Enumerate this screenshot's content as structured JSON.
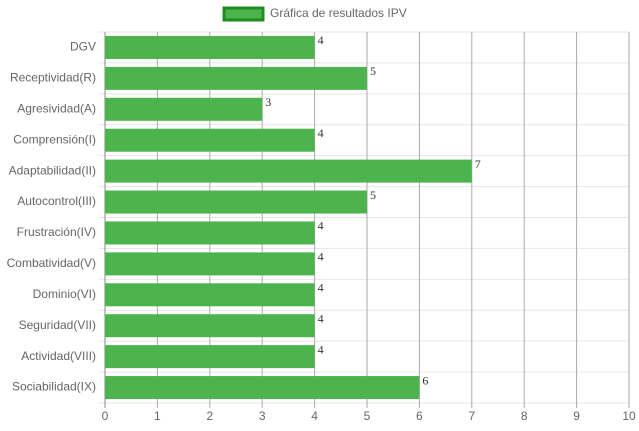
{
  "chart_data": {
    "type": "bar",
    "orientation": "horizontal",
    "series": [
      {
        "name": "Gráfica de resultados IPV",
        "color": "#4db34d",
        "border_color": "#1e8c1e",
        "values": [
          4,
          5,
          3,
          4,
          7,
          5,
          4,
          4,
          4,
          4,
          4,
          6
        ]
      }
    ],
    "categories": [
      "DGV",
      "Receptividad(R)",
      "Agresividad(A)",
      "Comprensión(I)",
      "Adaptabilidad(II)",
      "Autocontrol(III)",
      "Frustración(IV)",
      "Combatividad(V)",
      "Dominio(VI)",
      "Seguridad(VII)",
      "Actividad(VIII)",
      "Sociabilidad(IX)"
    ],
    "xlim": [
      0,
      10
    ],
    "xticks": [
      0,
      1,
      2,
      3,
      4,
      5,
      6,
      7,
      8,
      9,
      10
    ],
    "grid": true,
    "legend": "top"
  }
}
